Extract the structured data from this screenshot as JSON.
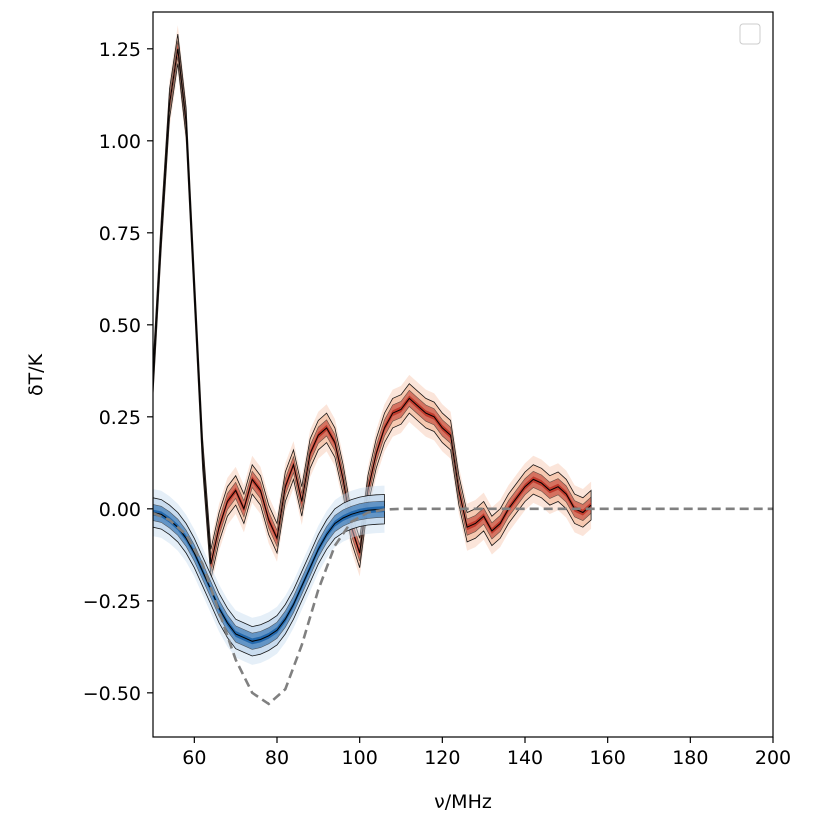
{
  "chart_data": {
    "type": "line",
    "xlabel": "ν/MHz",
    "ylabel": "δT/K",
    "xlim": [
      50,
      200
    ],
    "ylim": [
      -0.62,
      1.35
    ],
    "xticks": [
      {
        "v": 60,
        "label": "60"
      },
      {
        "v": 80,
        "label": "80"
      },
      {
        "v": 100,
        "label": "100"
      },
      {
        "v": 120,
        "label": "120"
      },
      {
        "v": 140,
        "label": "140"
      },
      {
        "v": 160,
        "label": "160"
      },
      {
        "v": 180,
        "label": "180"
      },
      {
        "v": 200,
        "label": "200"
      }
    ],
    "yticks": [
      {
        "v": -0.5,
        "label": "−0.50"
      },
      {
        "v": -0.25,
        "label": "−0.25"
      },
      {
        "v": 0,
        "label": "0.00"
      },
      {
        "v": 0.25,
        "label": "0.25"
      },
      {
        "v": 0.5,
        "label": "0.50"
      },
      {
        "v": 0.75,
        "label": "0.75"
      },
      {
        "v": 1.0,
        "label": "1.00"
      },
      {
        "v": 1.25,
        "label": "1.25"
      }
    ],
    "grid": false,
    "legend": {
      "placement": "top-right",
      "entries": []
    },
    "series": [
      {
        "role": "residual-band",
        "color": "#c0392b",
        "outer_color": "#f6c6ad",
        "x": [
          50,
          52,
          54,
          56,
          58,
          60,
          62,
          64,
          66,
          68,
          70,
          72,
          74,
          76,
          78,
          80,
          82,
          84,
          86,
          88,
          90,
          92,
          94,
          96,
          98,
          100,
          102,
          104,
          106,
          108,
          110,
          112,
          114,
          116,
          118,
          120,
          122,
          124,
          126,
          128,
          130,
          132,
          134,
          136,
          138,
          140,
          142,
          144,
          146,
          148,
          150,
          152,
          154,
          156
        ],
        "y": [
          0.35,
          0.75,
          1.1,
          1.25,
          1.05,
          0.6,
          0.15,
          -0.15,
          -0.05,
          0.02,
          0.05,
          0.0,
          0.08,
          0.05,
          -0.03,
          -0.08,
          0.06,
          0.12,
          0.02,
          0.15,
          0.2,
          0.22,
          0.18,
          0.08,
          -0.05,
          -0.12,
          0.05,
          0.15,
          0.22,
          0.26,
          0.27,
          0.3,
          0.28,
          0.26,
          0.25,
          0.22,
          0.2,
          0.05,
          -0.05,
          -0.04,
          -0.02,
          -0.06,
          -0.04,
          0.0,
          0.03,
          0.06,
          0.08,
          0.07,
          0.05,
          0.06,
          0.04,
          0.0,
          -0.01,
          0.01
        ],
        "half_width": 0.04
      },
      {
        "role": "signal-band",
        "color": "#2166ac",
        "outer_color": "#c6dbef",
        "x": [
          50,
          52,
          54,
          56,
          58,
          60,
          62,
          64,
          66,
          68,
          70,
          72,
          74,
          76,
          78,
          80,
          82,
          84,
          86,
          88,
          90,
          92,
          94,
          96,
          98,
          100,
          102,
          104,
          106
        ],
        "y": [
          -0.01,
          -0.015,
          -0.03,
          -0.05,
          -0.08,
          -0.12,
          -0.17,
          -0.22,
          -0.27,
          -0.31,
          -0.34,
          -0.35,
          -0.36,
          -0.355,
          -0.345,
          -0.33,
          -0.3,
          -0.26,
          -0.21,
          -0.16,
          -0.11,
          -0.07,
          -0.04,
          -0.025,
          -0.015,
          -0.008,
          -0.004,
          -0.002,
          -0.001
        ],
        "half_width": 0.04
      },
      {
        "role": "reference-dashed",
        "color": "#808080",
        "x": [
          50,
          54,
          58,
          62,
          66,
          70,
          74,
          78,
          82,
          86,
          90,
          94,
          98,
          102,
          106,
          110,
          120,
          140,
          160,
          180,
          200
        ],
        "y": [
          -0.012,
          -0.03,
          -0.07,
          -0.15,
          -0.28,
          -0.41,
          -0.5,
          -0.53,
          -0.49,
          -0.37,
          -0.22,
          -0.1,
          -0.035,
          -0.01,
          -0.002,
          0.0,
          0.0,
          0.0,
          0.0,
          0.0,
          0.0
        ]
      }
    ]
  }
}
